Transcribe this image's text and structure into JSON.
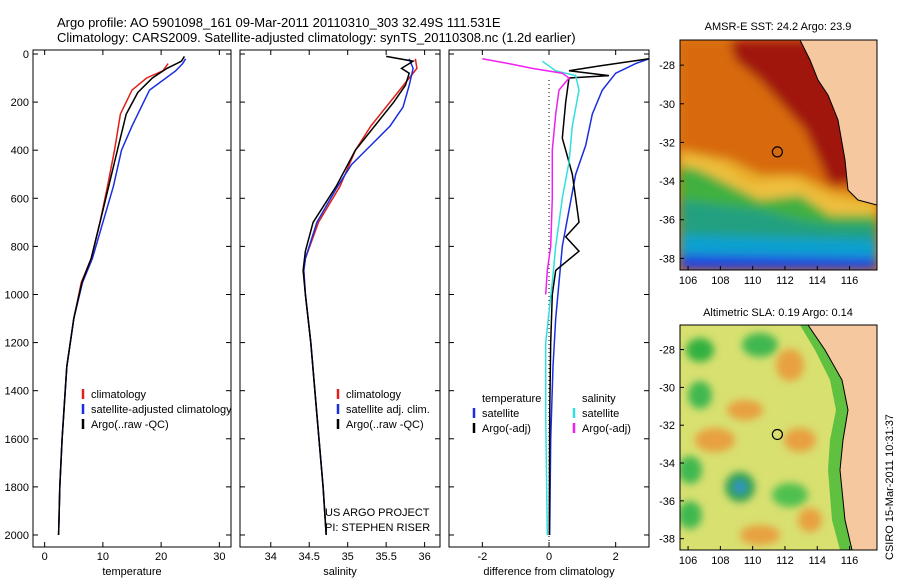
{
  "header": {
    "line1": "Argo profile: AO 5901098_161 09-Mar-2011 20110310_303 32.49S 111.531E",
    "line2": "Climatology: CARS2009. Satellite-adjusted climatology: synTS_20110308.nc (1.2d earlier)"
  },
  "colors": {
    "climatology": "#e0201a",
    "satellite": "#1a2ee0",
    "argo": "#000000",
    "satellite_salinity": "#30e0e0",
    "argo_adj_salinity": "#f020f0",
    "land": "#f5c8a0"
  },
  "credit": "CSIRO 15-Mar-2011 10:31:37",
  "chart_data": [
    {
      "type": "line",
      "id": "temperature",
      "xlabel": "temperature",
      "ylabel": "",
      "xlim": [
        -2,
        32
      ],
      "ylim": [
        2050,
        0
      ],
      "xticks": [
        "0",
        "10",
        "20",
        "30"
      ],
      "yticks": [
        "0",
        "200",
        "400",
        "600",
        "800",
        "1000",
        "1200",
        "1400",
        "1600",
        "1800",
        "2000"
      ],
      "legend": {
        "position": "lower-right",
        "entries": [
          "climatology",
          "satellite-adjusted climatology",
          "Argo(..raw -QC)"
        ]
      },
      "series": [
        {
          "name": "climatology",
          "color_key": "climatology",
          "points": [
            [
              21.2,
              40
            ],
            [
              20.3,
              70
            ],
            [
              17.5,
              100
            ],
            [
              15,
              150
            ],
            [
              13,
              250
            ],
            [
              12,
              400
            ],
            [
              10.8,
              550
            ],
            [
              9.5,
              700
            ],
            [
              8,
              850
            ],
            [
              6.3,
              950
            ],
            [
              5,
              1100
            ],
            [
              3.8,
              1300
            ],
            [
              3,
              1600
            ],
            [
              2.6,
              1800
            ],
            [
              2.4,
              2000
            ]
          ]
        },
        {
          "name": "satellite-adjusted climatology",
          "color_key": "satellite",
          "points": [
            [
              24.2,
              20
            ],
            [
              23.7,
              40
            ],
            [
              22.5,
              70
            ],
            [
              18,
              150
            ],
            [
              15,
              300
            ],
            [
              13.2,
              400
            ],
            [
              11.8,
              550
            ],
            [
              10,
              700
            ],
            [
              8.2,
              850
            ],
            [
              6.5,
              950
            ],
            [
              5,
              1100
            ],
            [
              3.8,
              1300
            ],
            [
              3,
              1600
            ],
            [
              2.6,
              1800
            ],
            [
              2.4,
              2000
            ]
          ]
        },
        {
          "name": "Argo(..raw -QC)",
          "color_key": "argo",
          "points": [
            [
              24,
              10
            ],
            [
              23.5,
              30
            ],
            [
              21,
              60
            ],
            [
              18.5,
              100
            ],
            [
              16,
              160
            ],
            [
              14,
              250
            ],
            [
              12.5,
              400
            ],
            [
              11,
              550
            ],
            [
              9.5,
              700
            ],
            [
              8,
              850
            ],
            [
              6.4,
              950
            ],
            [
              5,
              1100
            ],
            [
              3.8,
              1300
            ],
            [
              3,
              1600
            ],
            [
              2.6,
              1800
            ],
            [
              2.4,
              2000
            ]
          ]
        }
      ]
    },
    {
      "type": "line",
      "id": "salinity",
      "xlabel": "salinity",
      "ylabel": "",
      "xlim": [
        33.6,
        36.2
      ],
      "ylim": [
        2050,
        0
      ],
      "xticks": [
        "34",
        "34.5",
        "35",
        "35.5",
        "36"
      ],
      "legend": {
        "position": "lower-right",
        "entries": [
          "climatology",
          "satellite adj. clim.",
          "Argo(..raw -QC)"
        ]
      },
      "annotations": [
        "US ARGO PROJECT",
        "PI: STEPHEN RISER"
      ],
      "series": [
        {
          "name": "climatology",
          "color_key": "climatology",
          "points": [
            [
              35.88,
              20
            ],
            [
              35.9,
              60
            ],
            [
              35.75,
              120
            ],
            [
              35.55,
              200
            ],
            [
              35.3,
              300
            ],
            [
              35.1,
              400
            ],
            [
              34.9,
              550
            ],
            [
              34.62,
              700
            ],
            [
              34.45,
              850
            ],
            [
              34.43,
              900
            ],
            [
              34.45,
              1000
            ],
            [
              34.52,
              1200
            ],
            [
              34.6,
              1500
            ],
            [
              34.68,
              1800
            ],
            [
              34.72,
              2000
            ]
          ]
        },
        {
          "name": "satellite adj. clim.",
          "color_key": "satellite",
          "points": [
            [
              35.8,
              20
            ],
            [
              35.85,
              60
            ],
            [
              35.8,
              130
            ],
            [
              35.72,
              220
            ],
            [
              35.55,
              300
            ],
            [
              35.3,
              380
            ],
            [
              35.05,
              460
            ],
            [
              34.85,
              560
            ],
            [
              34.6,
              700
            ],
            [
              34.45,
              850
            ],
            [
              34.43,
              900
            ],
            [
              34.45,
              1000
            ],
            [
              34.52,
              1200
            ],
            [
              34.6,
              1500
            ],
            [
              34.68,
              1800
            ],
            [
              34.72,
              2000
            ]
          ]
        },
        {
          "name": "Argo(..raw -QC)",
          "color_key": "argo",
          "points": [
            [
              35.5,
              10
            ],
            [
              35.85,
              30
            ],
            [
              35.7,
              60
            ],
            [
              35.8,
              80
            ],
            [
              35.75,
              130
            ],
            [
              35.6,
              200
            ],
            [
              35.35,
              300
            ],
            [
              35.1,
              400
            ],
            [
              34.85,
              550
            ],
            [
              34.55,
              700
            ],
            [
              34.45,
              820
            ],
            [
              34.42,
              900
            ],
            [
              34.45,
              1000
            ],
            [
              34.52,
              1200
            ],
            [
              34.6,
              1500
            ],
            [
              34.68,
              1800
            ],
            [
              34.72,
              2000
            ]
          ]
        }
      ]
    },
    {
      "type": "line",
      "id": "difference",
      "xlabel": "difference from climatology",
      "ylabel": "",
      "xlim": [
        -3,
        3
      ],
      "ylim": [
        2050,
        0
      ],
      "xticks": [
        "-2",
        "0",
        "2"
      ],
      "legend": {
        "position": "lower-right",
        "groups": [
          {
            "title": "temperature",
            "entries": [
              "satellite",
              "Argo(-adj)"
            ]
          },
          {
            "title": "salinity",
            "entries": [
              "satellite",
              "Argo(-adj)"
            ]
          }
        ]
      },
      "series": [
        {
          "name": "temperature satellite",
          "color_key": "satellite",
          "points": [
            [
              3,
              20
            ],
            [
              2.6,
              40
            ],
            [
              2,
              80
            ],
            [
              1.6,
              150
            ],
            [
              1.3,
              250
            ],
            [
              1.1,
              380
            ],
            [
              0.8,
              500
            ],
            [
              0.6,
              650
            ],
            [
              0.4,
              800
            ],
            [
              0.3,
              950
            ],
            [
              0.2,
              1100
            ],
            [
              0.12,
              1300
            ],
            [
              0.05,
              1600
            ],
            [
              0.02,
              2000
            ]
          ]
        },
        {
          "name": "temperature Argo(-adj)",
          "color_key": "argo",
          "points": [
            [
              3,
              20
            ],
            [
              1.5,
              50
            ],
            [
              0.6,
              70
            ],
            [
              1.8,
              90
            ],
            [
              0.6,
              100
            ],
            [
              0.5,
              200
            ],
            [
              0.4,
              350
            ],
            [
              0.5,
              400
            ],
            [
              0.7,
              500
            ],
            [
              0.8,
              600
            ],
            [
              0.9,
              700
            ],
            [
              0.5,
              760
            ],
            [
              0.9,
              820
            ],
            [
              0.2,
              900
            ],
            [
              0.1,
              1000
            ],
            [
              0.05,
              1200
            ],
            [
              0.02,
              1500
            ],
            [
              0.01,
              2000
            ]
          ]
        },
        {
          "name": "salinity satellite",
          "color_key": "satellite_salinity",
          "points": [
            [
              -0.2,
              30
            ],
            [
              0.2,
              70
            ],
            [
              0.8,
              90
            ],
            [
              0.9,
              150
            ],
            [
              0.7,
              300
            ],
            [
              0.6,
              450
            ],
            [
              0.4,
              600
            ],
            [
              0.2,
              800
            ],
            [
              0.1,
              950
            ],
            [
              -0.1,
              1200
            ],
            [
              -0.1,
              1500
            ],
            [
              -0.05,
              2000
            ]
          ]
        },
        {
          "name": "salinity Argo(-adj)",
          "color_key": "argo_adj_salinity",
          "points": [
            [
              -2,
              20
            ],
            [
              -1.2,
              40
            ],
            [
              -0.5,
              60
            ],
            [
              0.4,
              80
            ],
            [
              0.6,
              100
            ],
            [
              0.3,
              150
            ],
            [
              0.2,
              250
            ],
            [
              0.1,
              400
            ],
            [
              0.1,
              600
            ],
            [
              0.05,
              800
            ],
            [
              -0.05,
              900
            ],
            [
              -0.1,
              1000
            ]
          ]
        }
      ]
    },
    {
      "type": "heatmap",
      "id": "sst-map",
      "title": "AMSR-E SST: 24.2 Argo: 23.9",
      "xlim": [
        105.5,
        117.7
      ],
      "ylim": [
        -38.6,
        -26.7
      ],
      "xticks": [
        "106",
        "108",
        "110",
        "112",
        "114",
        "116"
      ],
      "yticks": [
        "-28",
        "-30",
        "-32",
        "-34",
        "-36",
        "-38"
      ],
      "marker": {
        "lon": 111.531,
        "lat": -32.49
      }
    },
    {
      "type": "heatmap",
      "id": "sla-map",
      "title": "Altimetric SLA: 0.19 Argo: 0.14",
      "xlim": [
        105.5,
        117.7
      ],
      "ylim": [
        -38.6,
        -26.7
      ],
      "xticks": [
        "106",
        "108",
        "110",
        "112",
        "114",
        "116"
      ],
      "yticks": [
        "-28",
        "-30",
        "-32",
        "-34",
        "-36",
        "-38"
      ],
      "marker": {
        "lon": 111.531,
        "lat": -32.49
      }
    }
  ]
}
